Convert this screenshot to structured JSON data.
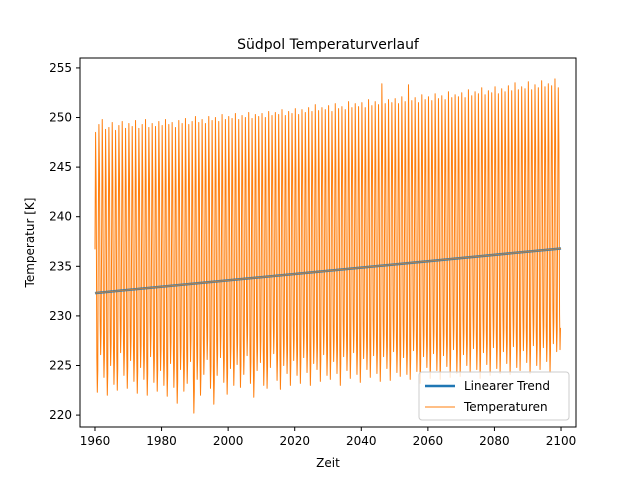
{
  "chart_data": {
    "type": "line",
    "title": "Südpol Temperaturverlauf",
    "xlabel": "Zeit",
    "ylabel": "Temperatur [K]",
    "xlim": [
      1955.5,
      2104.5
    ],
    "ylim": [
      218.8,
      256.0
    ],
    "xticks": [
      1960,
      1980,
      2000,
      2020,
      2040,
      2060,
      2080,
      2100
    ],
    "yticks": [
      220,
      225,
      230,
      235,
      240,
      245,
      250,
      255
    ],
    "grid": false,
    "legend_position": "lower right",
    "series": [
      {
        "name": "Linearer Trend",
        "kind": "trend",
        "color": "#1f77b4",
        "x": [
          1960,
          2100
        ],
        "y": [
          232.3,
          236.8
        ]
      },
      {
        "name": "Temperaturen",
        "kind": "seasonal-cycle",
        "color": "#ff7f0e",
        "x_start": 1960,
        "x_end": 2100,
        "annual_max": [
          248.5,
          249.3,
          249.8,
          248.8,
          249.0,
          249.5,
          248.7,
          249.2,
          249.6,
          248.9,
          249.4,
          249.1,
          249.7,
          248.9,
          249.3,
          249.8,
          249.0,
          249.4,
          249.1,
          249.6,
          249.2,
          249.8,
          249.3,
          249.5,
          249.0,
          249.7,
          249.4,
          249.9,
          249.3,
          249.6,
          250.1,
          249.5,
          249.8,
          249.4,
          250.1,
          249.7,
          250.0,
          249.6,
          250.3,
          249.8,
          250.1,
          249.9,
          250.4,
          249.8,
          250.2,
          250.0,
          250.5,
          249.9,
          250.3,
          250.1,
          250.4,
          250.0,
          250.6,
          250.2,
          250.5,
          250.3,
          250.8,
          250.2,
          250.6,
          250.4,
          250.9,
          250.3,
          250.8,
          250.5,
          251.0,
          250.6,
          251.3,
          250.7,
          251.0,
          250.8,
          251.2,
          250.6,
          251.4,
          250.9,
          251.1,
          250.8,
          251.6,
          251.0,
          251.4,
          251.1,
          251.5,
          251.0,
          251.8,
          251.2,
          251.6,
          251.3,
          253.4,
          251.4,
          251.8,
          251.5,
          251.9,
          251.4,
          252.1,
          251.6,
          253.3,
          251.7,
          252.0,
          251.5,
          252.3,
          251.8,
          252.1,
          251.7,
          252.4,
          251.9,
          252.2,
          251.8,
          252.6,
          252.0,
          252.3,
          252.1,
          252.5,
          252.0,
          252.8,
          252.2,
          252.6,
          252.4,
          253.0,
          252.3,
          252.7,
          252.5,
          253.1,
          252.4,
          252.9,
          252.6,
          253.2,
          252.7,
          253.5,
          252.8,
          253.1,
          252.9,
          253.6,
          252.8,
          253.3,
          253.0,
          253.7,
          253.1,
          253.4,
          253.2,
          253.9,
          253.0
        ],
        "annual_min": [
          222.3,
          226.1,
          223.8,
          222.0,
          225.0,
          223.1,
          222.5,
          226.3,
          224.0,
          222.7,
          225.5,
          223.4,
          222.2,
          224.8,
          223.6,
          222.0,
          225.9,
          223.3,
          222.4,
          224.5,
          223.0,
          221.9,
          225.2,
          222.8,
          221.2,
          224.6,
          222.4,
          223.2,
          225.4,
          220.2,
          223.6,
          222.0,
          224.1,
          225.6,
          222.7,
          221.1,
          224.0,
          225.8,
          223.3,
          222.1,
          224.7,
          223.0,
          225.1,
          222.8,
          224.1,
          226.0,
          223.2,
          221.8,
          224.5,
          225.3,
          223.0,
          222.7,
          224.8,
          226.2,
          223.5,
          222.6,
          225.0,
          224.2,
          223.0,
          225.5,
          224.0,
          223.2,
          225.8,
          224.3,
          223.0,
          225.2,
          224.6,
          223.4,
          226.1,
          224.0,
          223.6,
          225.4,
          224.2,
          223.0,
          225.9,
          224.5,
          223.7,
          226.3,
          224.1,
          223.3,
          225.7,
          224.6,
          223.8,
          226.0,
          224.2,
          223.4,
          225.9,
          224.7,
          223.5,
          226.4,
          224.3,
          223.9,
          225.8,
          224.1,
          223.6,
          226.5,
          224.4,
          223.2,
          225.9,
          224.8,
          223.7,
          226.2,
          224.5,
          223.6,
          226.0,
          224.9,
          223.8,
          226.6,
          224.2,
          223.9,
          226.1,
          225.0,
          224.3,
          226.7,
          224.6,
          223.7,
          226.3,
          225.1,
          224.0,
          226.8,
          224.7,
          224.2,
          226.4,
          225.2,
          224.1,
          226.9,
          224.8,
          224.5,
          226.5,
          225.3,
          224.2,
          227.0,
          225.0,
          224.6,
          226.8,
          225.4,
          224.3,
          227.2,
          226.4,
          226.6
        ]
      }
    ]
  }
}
